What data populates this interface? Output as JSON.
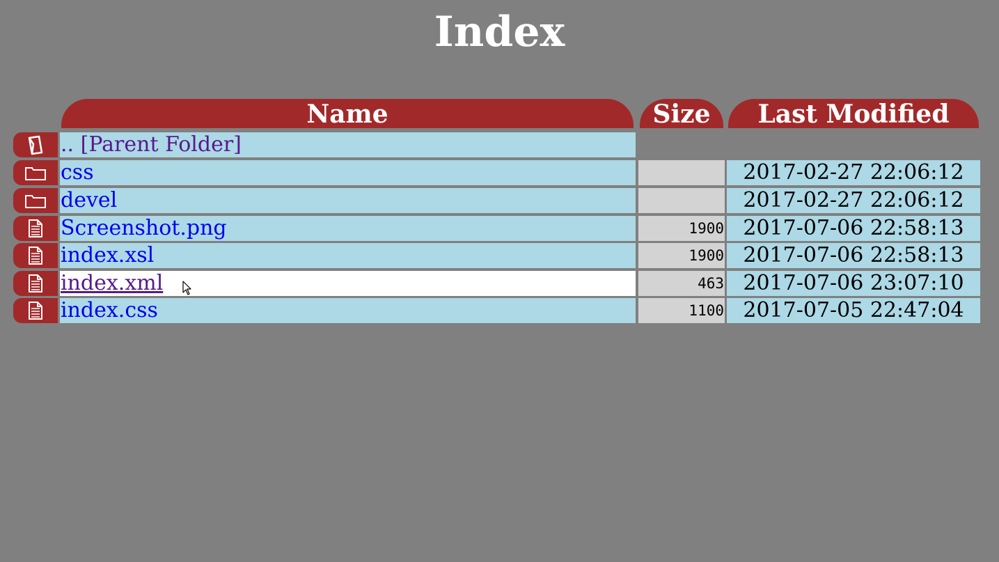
{
  "page": {
    "title": "Index"
  },
  "headers": {
    "name": "Name",
    "size": "Size",
    "modified": "Last Modified"
  },
  "colors": {
    "background": "#808080",
    "header": "#a2292a",
    "name_cell": "#add8e6",
    "size_cell": "#d3d3d3",
    "link": "#0000ee",
    "visited_link": "#551a8b"
  },
  "rows": [
    {
      "icon": "parent-folder-icon",
      "name": ".. [Parent Folder]",
      "size": "",
      "modified": ""
    },
    {
      "icon": "folder-icon",
      "name": "css",
      "size": "",
      "modified": "2017-02-27 22:06:12"
    },
    {
      "icon": "folder-icon",
      "name": "devel",
      "size": "",
      "modified": "2017-02-27 22:06:12"
    },
    {
      "icon": "file-icon",
      "name": "Screenshot.png",
      "size": "1900",
      "modified": "2017-07-06 22:58:13"
    },
    {
      "icon": "file-icon",
      "name": "index.xsl",
      "size": "1900",
      "modified": "2017-07-06 22:58:13"
    },
    {
      "icon": "file-icon",
      "name": "index.xml",
      "size": "463",
      "modified": "2017-07-06 23:07:10"
    },
    {
      "icon": "file-icon",
      "name": "index.css",
      "size": "1100",
      "modified": "2017-07-05 22:47:04"
    }
  ]
}
